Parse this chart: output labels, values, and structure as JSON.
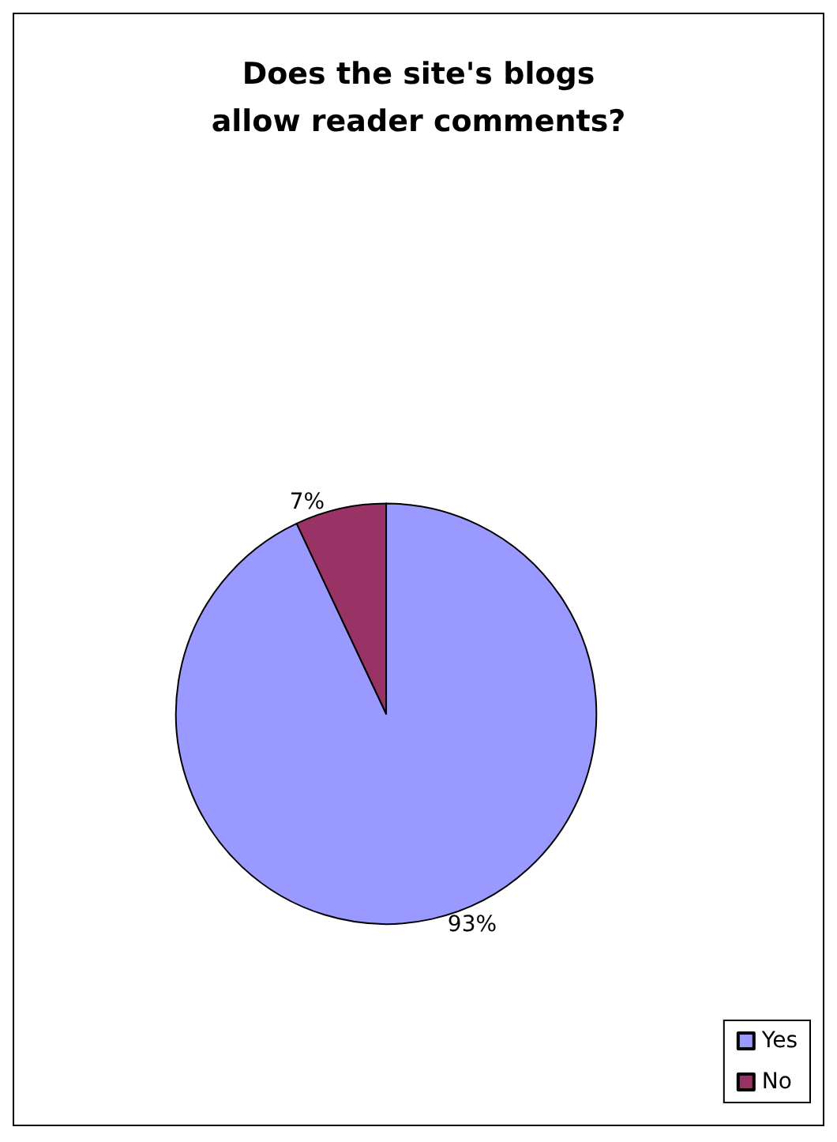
{
  "chart_data": {
    "type": "pie",
    "title": "Does the site's blogs\nallow reader comments?",
    "categories": [
      "Yes",
      "No"
    ],
    "values": [
      93,
      7
    ],
    "colors": [
      "#9999ff",
      "#993366"
    ],
    "value_labels": [
      "93%",
      "7%"
    ],
    "legend": "bottom right"
  }
}
